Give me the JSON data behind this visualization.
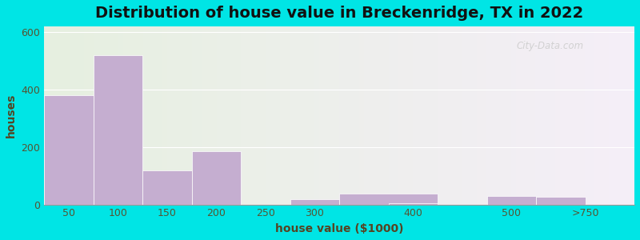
{
  "title": "Distribution of house value in Breckenridge, TX in 2022",
  "xlabel": "house value ($1000)",
  "ylabel": "houses",
  "bar_values": [
    380,
    520,
    120,
    185,
    0,
    18,
    38,
    5,
    30,
    28
  ],
  "bar_lefts": [
    0,
    1,
    2,
    3,
    4,
    5,
    6,
    7,
    9,
    10
  ],
  "bar_widths": [
    1,
    1,
    1,
    1,
    1,
    1,
    2,
    1,
    1,
    1
  ],
  "xtick_pos": [
    0.5,
    1.5,
    2.5,
    3.5,
    4.5,
    5.5,
    7.5,
    9.5,
    11
  ],
  "xtick_labels": [
    "50",
    "100",
    "150",
    "200",
    "250",
    "300",
    "400",
    "500",
    ">750"
  ],
  "bar_color": "#c5aed0",
  "background_outer": "#00e5e5",
  "background_inner_left": "#e6efe0",
  "background_inner_right": "#f0ecf5",
  "ylim": [
    0,
    620
  ],
  "xlim": [
    0,
    12
  ],
  "yticks": [
    0,
    200,
    400,
    600
  ],
  "title_fontsize": 14,
  "axis_label_fontsize": 10,
  "tick_fontsize": 9,
  "watermark": "City-Data.com"
}
